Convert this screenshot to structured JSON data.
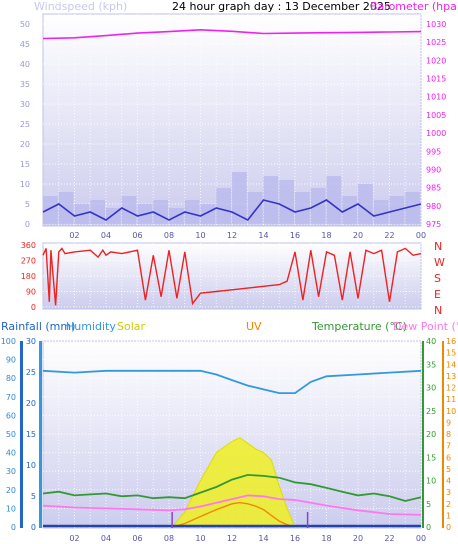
{
  "title": "24 hour graph day : 13 December 2025",
  "colors": {
    "windspeed": "#3333cc",
    "gust": "#b8b8ee",
    "barometer": "#ee22ee",
    "direction": "#ee2222",
    "rainfall": "#2266cc",
    "humidity": "#3399dd",
    "solar": "#dddd00",
    "uv": "#ee8800",
    "temperature": "#339933",
    "dewpoint": "#ff77ee",
    "axis_left": "#9999dd",
    "axis_blue": "#3388cc"
  },
  "chart_data": [
    {
      "type": "line",
      "name": "wind-barometer",
      "labels": {
        "windspeed": "Windspeed (kph)",
        "barometer": "Barometer (hpa)"
      },
      "x_ticks": [
        "02",
        "04",
        "06",
        "08",
        "10",
        "12",
        "14",
        "16",
        "18",
        "20",
        "22",
        "00"
      ],
      "y_left": {
        "ylim": [
          0,
          50
        ],
        "ticks": [
          "0",
          "5",
          "10",
          "15",
          "20",
          "25",
          "30",
          "35",
          "40",
          "45",
          "50"
        ]
      },
      "y_right": {
        "ylim": [
          975,
          1030
        ],
        "ticks": [
          "975",
          "980",
          "985",
          "990",
          "995",
          "1000",
          "1005",
          "1010",
          "1015",
          "1020",
          "1025",
          "1030"
        ]
      },
      "series": [
        {
          "name": "Windspeed (kph)",
          "x": [
            0,
            1,
            2,
            3,
            4,
            5,
            6,
            7,
            8,
            9,
            10,
            11,
            12,
            13,
            14,
            15,
            16,
            17,
            18,
            19,
            20,
            21,
            22,
            23,
            24
          ],
          "values": [
            3,
            5,
            2,
            3,
            1,
            4,
            2,
            3,
            1,
            3,
            2,
            4,
            3,
            1,
            6,
            5,
            3,
            4,
            6,
            3,
            5,
            2,
            3,
            4,
            5
          ]
        },
        {
          "name": "Wind gust",
          "x": [
            0,
            1,
            2,
            3,
            4,
            5,
            6,
            7,
            8,
            9,
            10,
            11,
            12,
            13,
            14,
            15,
            16,
            17,
            18,
            19,
            20,
            21,
            22,
            23,
            24
          ],
          "values": [
            7,
            8,
            5,
            6,
            4,
            7,
            5,
            6,
            4,
            6,
            5,
            9,
            13,
            8,
            12,
            11,
            8,
            9,
            12,
            7,
            10,
            6,
            7,
            8,
            14
          ]
        },
        {
          "name": "Barometer (hpa)",
          "x": [
            0,
            2,
            4,
            6,
            8,
            10,
            12,
            14,
            16,
            18,
            20,
            22,
            24
          ],
          "values": [
            1026.0,
            1026.2,
            1026.8,
            1027.5,
            1027.9,
            1028.4,
            1028.0,
            1027.4,
            1027.5,
            1027.6,
            1027.7,
            1027.8,
            1027.9
          ]
        }
      ]
    },
    {
      "type": "line",
      "name": "wind-direction",
      "y_left": {
        "ylim": [
          0,
          360
        ],
        "ticks": [
          "0",
          "90",
          "180",
          "270",
          "360"
        ]
      },
      "y_right_labels": [
        "N",
        "W",
        "S",
        "E",
        "N"
      ],
      "series": [
        {
          "name": "Wind direction",
          "x": [
            0,
            0.2,
            0.4,
            0.5,
            0.8,
            1.0,
            1.2,
            1.4,
            2,
            3,
            3.5,
            3.8,
            4,
            4.3,
            5,
            6,
            6.5,
            7,
            7.5,
            8,
            8.5,
            9,
            9.5,
            10,
            11,
            12,
            13,
            14,
            15,
            15.5,
            16,
            16.5,
            17,
            17.5,
            18,
            18.5,
            19,
            19.5,
            20,
            20.5,
            21,
            21.5,
            22,
            22.5,
            23,
            23.5,
            24
          ],
          "values": [
            300,
            340,
            30,
            330,
            10,
            320,
            340,
            310,
            320,
            330,
            290,
            330,
            300,
            320,
            310,
            330,
            40,
            300,
            60,
            330,
            50,
            320,
            20,
            80,
            90,
            100,
            110,
            120,
            130,
            150,
            320,
            40,
            330,
            60,
            320,
            300,
            40,
            320,
            50,
            330,
            310,
            330,
            30,
            320,
            340,
            300,
            310
          ]
        }
      ]
    },
    {
      "type": "line",
      "name": "rain-humidity-solar-uv-temperature",
      "labels": {
        "rainfall": "Rainfall (mm)",
        "humidity": "Humidity",
        "solar": "Solar",
        "uv": "UV",
        "temperature": "Temperature (°C)",
        "dewpoint": "Dew Point (°C)"
      },
      "x_ticks": [
        "02",
        "04",
        "06",
        "08",
        "10",
        "12",
        "14",
        "16",
        "18",
        "20",
        "22",
        "00"
      ],
      "y_humidity": {
        "ylim": [
          0,
          100
        ],
        "ticks": [
          "0",
          "10",
          "20",
          "30",
          "40",
          "50",
          "60",
          "70",
          "80",
          "90",
          "100"
        ]
      },
      "y_rain": {
        "ylim": [
          0,
          30
        ],
        "ticks": [
          "0",
          "5",
          "10",
          "15",
          "20",
          "25",
          "30"
        ]
      },
      "y_temp": {
        "ylim": [
          0,
          40
        ],
        "ticks": [
          "0",
          "5",
          "10",
          "15",
          "20",
          "25",
          "30",
          "35",
          "40"
        ]
      },
      "y_uv": {
        "ylim": [
          0,
          16
        ],
        "ticks": [
          "0",
          "1",
          "2",
          "3",
          "4",
          "5",
          "6",
          "7",
          "8",
          "9",
          "10",
          "11",
          "12",
          "13",
          "14",
          "15",
          "16"
        ]
      },
      "series": [
        {
          "name": "Humidity",
          "x": [
            0,
            2,
            4,
            6,
            8,
            9,
            10,
            11,
            12,
            13,
            14,
            15,
            16,
            17,
            18,
            20,
            22,
            24
          ],
          "values": [
            84,
            83,
            84,
            84,
            84,
            84,
            84,
            82,
            79,
            76,
            74,
            72,
            72,
            78,
            81,
            82,
            83,
            84
          ]
        },
        {
          "name": "Temperature (°C)",
          "x": [
            0,
            1,
            2,
            3,
            4,
            5,
            6,
            7,
            8,
            9,
            10,
            11,
            12,
            13,
            14,
            15,
            16,
            17,
            18,
            19,
            20,
            21,
            22,
            23,
            24
          ],
          "values": [
            7.2,
            7.6,
            6.8,
            7.0,
            7.2,
            6.6,
            6.8,
            6.2,
            6.4,
            6.2,
            7.4,
            8.6,
            10.2,
            11.2,
            11.0,
            10.6,
            9.6,
            9.2,
            8.4,
            7.6,
            6.8,
            7.2,
            6.6,
            5.6,
            6.4
          ]
        },
        {
          "name": "Dew Point (°C)",
          "x": [
            0,
            2,
            4,
            6,
            8,
            9,
            10,
            11,
            12,
            13,
            14,
            15,
            16,
            17,
            18,
            20,
            22,
            24
          ],
          "values": [
            4.6,
            4.2,
            4.0,
            3.8,
            3.6,
            3.8,
            4.4,
            5.2,
            6.0,
            6.8,
            6.6,
            6.0,
            5.8,
            5.2,
            4.6,
            3.6,
            2.8,
            2.6
          ]
        },
        {
          "name": "Solar",
          "x": [
            8.2,
            9,
            10,
            11,
            12,
            12.5,
            13,
            13.5,
            14,
            14.5,
            15,
            15.5,
            16
          ],
          "values": [
            0,
            8,
            25,
            40,
            46,
            48,
            45,
            42,
            40,
            36,
            22,
            10,
            0
          ]
        },
        {
          "name": "UV",
          "x": [
            8.2,
            9,
            10,
            11,
            12,
            12.5,
            13,
            13.5,
            14,
            14.5,
            15,
            15.5,
            16
          ],
          "values": [
            0,
            0.3,
            0.9,
            1.5,
            2.0,
            2.1,
            2.0,
            1.8,
            1.5,
            1.0,
            0.5,
            0.2,
            0
          ]
        },
        {
          "name": "Rainfall (mm)",
          "x": [
            0,
            24
          ],
          "values": [
            0,
            0
          ]
        }
      ],
      "markers_x": [
        8.2,
        16.8
      ]
    }
  ]
}
